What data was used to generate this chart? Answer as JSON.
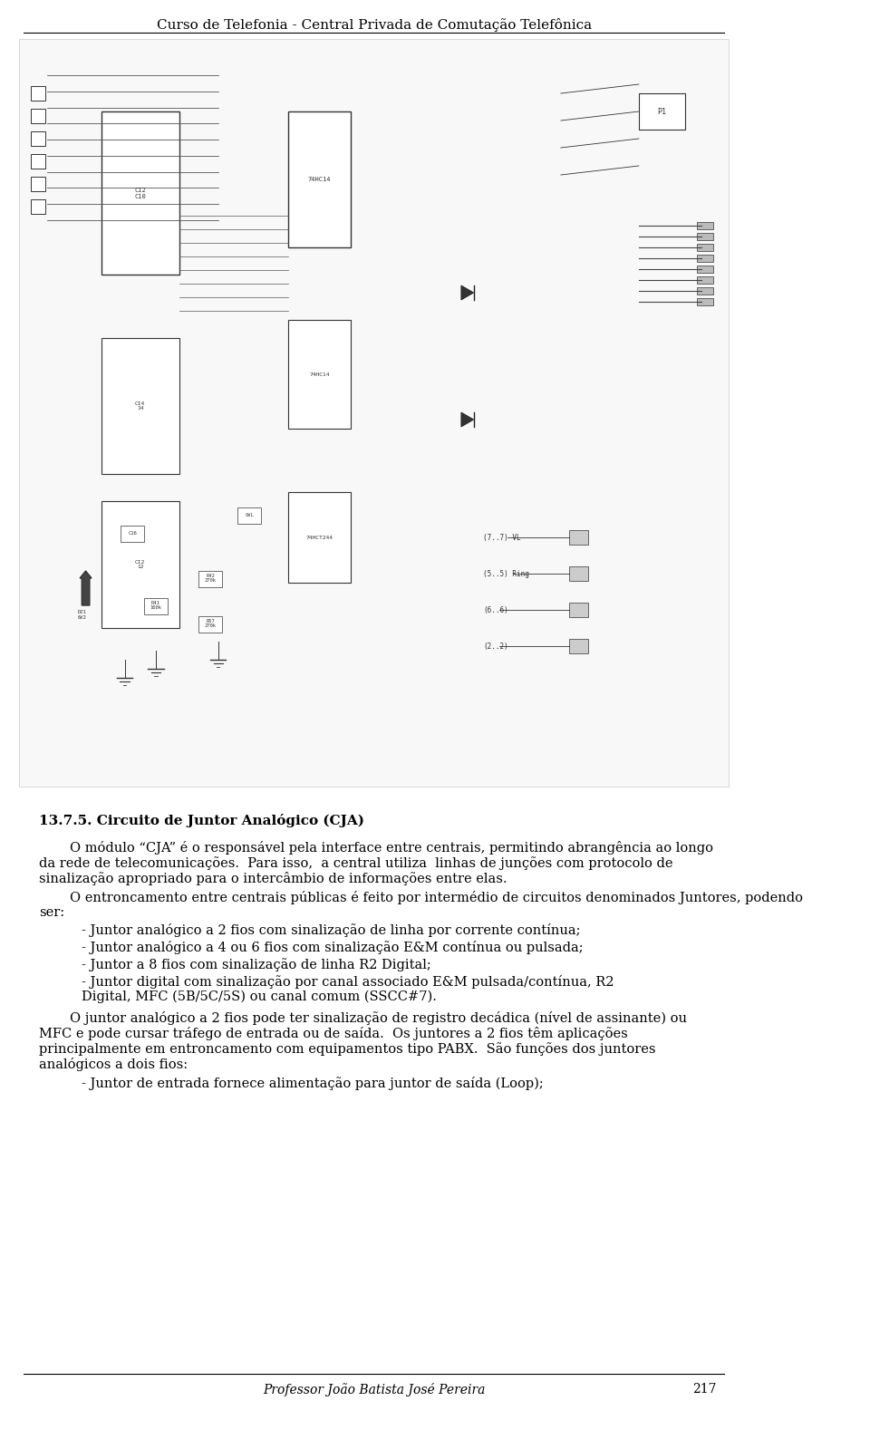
{
  "header": "Curso de Telefonia - Central Privada de Comutação Telefônica",
  "footer": "Professor João Batista José Pereira",
  "page_number": "217",
  "section_title": "13.7.5. Circuito de Juntor Analógico (CJA)",
  "background_color": "#ffffff",
  "text_color": "#000000",
  "header_fontsize": 11,
  "body_fontsize": 10.5,
  "paragraphs": [
    {
      "indent": true,
      "text": "O módulo “CJA” é o responsável pela interface entre centrais, permitindo abrangência ao longo da rede de telecomunicações.  Para isso,  a central utiliza  linhas de junções com protocolo de sinalização apropriado para o intercâmbio de informações entre elas."
    },
    {
      "indent": true,
      "text": "O entroncamento entre centrais públicas é feito por intermédio de circuitos denominados Juntores, podendo ser:"
    },
    {
      "indent": false,
      "bullet": true,
      "text": "- Juntor analógico a 2 fios com sinalização de linha por corrente contínua;"
    },
    {
      "indent": false,
      "bullet": true,
      "text": "- Juntor analógico a 4 ou 6 fios com sinalização E&M contínua ou pulsada;"
    },
    {
      "indent": false,
      "bullet": true,
      "text": "- Juntor a 8 fios com sinalização de linha R2 Digital;"
    },
    {
      "indent": false,
      "bullet": true,
      "text": "- Juntor digital com sinalização por canal associado E&M pulsada/contínua, R2 Digital, MFC (5B/5C/5S) ou canal comum (SSCC#7)."
    },
    {
      "indent": true,
      "text": "O juntor analógico a 2 fios pode ter sinalização de registro decádica (nível de assinante) ou MFC e pode cursar tráfego de entrada ou de saída.  Os juntores a 2 fios têm aplicações principalmente em entroncamento com equipamentos tipo PABX.  São funções dos juntores analógicos a dois fios:"
    },
    {
      "indent": false,
      "bullet": true,
      "text": "- Juntor de entrada fornece alimentação para juntor de saída (Loop);"
    }
  ]
}
